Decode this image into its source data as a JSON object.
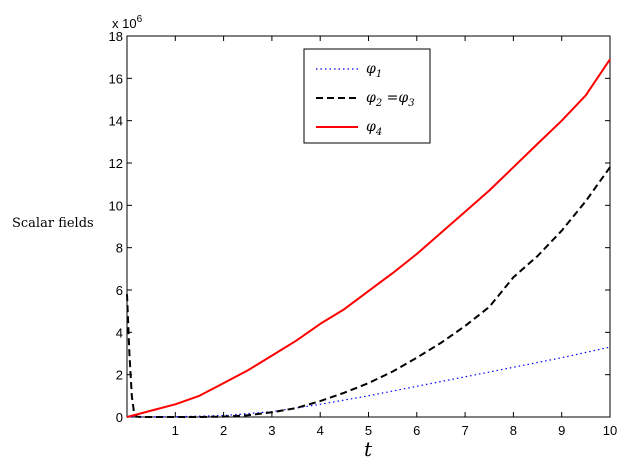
{
  "chart_data": {
    "type": "line",
    "xlabel": "t",
    "ylabel": "Scalar fields",
    "y_exponent_label": "x 10^6",
    "xlim": [
      0,
      10
    ],
    "ylim": [
      0,
      18
    ],
    "xticks": [
      1,
      2,
      3,
      4,
      5,
      6,
      7,
      8,
      9,
      10
    ],
    "yticks": [
      0,
      2,
      4,
      6,
      8,
      10,
      12,
      14,
      16,
      18
    ],
    "grid": false,
    "legend_position": "top-center",
    "series": [
      {
        "name": "φ1",
        "color": "#0000ff",
        "style": "dotted",
        "x": [
          0,
          1,
          2,
          3,
          4,
          5,
          6,
          7,
          8,
          9,
          10
        ],
        "y": [
          0,
          0.01,
          0.07,
          0.25,
          0.6,
          1.0,
          1.45,
          1.9,
          2.35,
          2.8,
          3.3
        ]
      },
      {
        "name": "φ2 = φ3",
        "color": "#000000",
        "style": "dashed",
        "x": [
          0,
          0.05,
          0.1,
          0.15,
          0.2,
          0.3,
          0.5,
          1,
          1.5,
          2,
          2.5,
          3,
          3.5,
          4,
          4.5,
          5,
          5.5,
          6,
          6.5,
          7,
          7.5,
          8,
          8.5,
          9,
          9.5,
          10
        ],
        "y": [
          5.8,
          3.0,
          1.0,
          0.15,
          0.02,
          0.0,
          0.0,
          0.0,
          0.0,
          0.02,
          0.08,
          0.22,
          0.42,
          0.75,
          1.15,
          1.6,
          2.15,
          2.8,
          3.5,
          4.3,
          5.2,
          6.6,
          7.6,
          8.8,
          10.2,
          11.8
        ]
      },
      {
        "name": "φ4",
        "color": "#ff0000",
        "style": "solid",
        "x": [
          0,
          0.5,
          1,
          1.5,
          2,
          2.5,
          3,
          3.5,
          4,
          4.5,
          5,
          5.5,
          6,
          6.5,
          7,
          7.5,
          8,
          8.5,
          9,
          9.5,
          10
        ],
        "y": [
          0.0,
          0.3,
          0.6,
          1.0,
          1.6,
          2.2,
          2.9,
          3.6,
          4.4,
          5.1,
          5.95,
          6.8,
          7.7,
          8.7,
          9.7,
          10.7,
          11.8,
          12.9,
          14.0,
          15.2,
          16.9
        ]
      }
    ]
  }
}
